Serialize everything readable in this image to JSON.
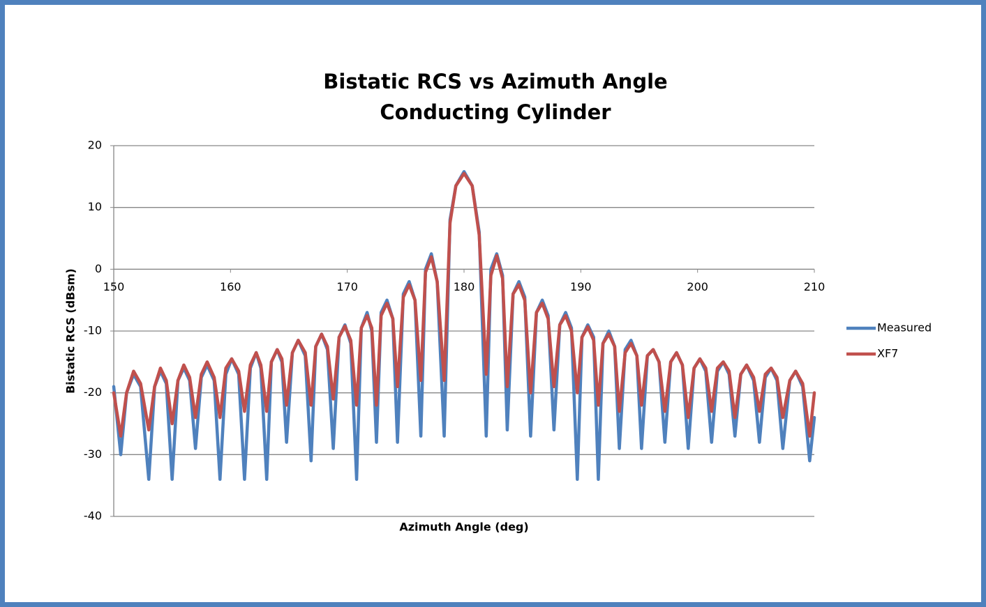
{
  "chart_data": {
    "type": "line",
    "title": "Bistatic RCS vs Azimuth Angle",
    "subtitle": "Conducting Cylinder",
    "x_label": "Azimuth Angle (deg)",
    "y_label": "Bistatic RCS (dBsm)",
    "xlim": [
      150,
      210
    ],
    "xticks": [
      150,
      160,
      170,
      180,
      190,
      200,
      210
    ],
    "ylim": [
      -40,
      20
    ],
    "yticks": [
      -40,
      -30,
      -20,
      -10,
      0,
      10,
      20
    ],
    "grid": true,
    "legend": "right",
    "x": [
      150,
      150.6,
      151.1,
      151.7,
      152.3,
      153.0,
      153.5,
      154.0,
      154.5,
      155.0,
      155.5,
      156.0,
      156.5,
      157.0,
      157.5,
      158.0,
      158.6,
      159.1,
      159.6,
      160.1,
      160.7,
      161.2,
      161.7,
      162.2,
      162.6,
      163.1,
      163.5,
      164.0,
      164.4,
      164.8,
      165.3,
      165.8,
      166.4,
      166.9,
      167.3,
      167.8,
      168.3,
      168.8,
      169.3,
      169.8,
      170.3,
      170.8,
      171.2,
      171.7,
      172.1,
      172.5,
      172.9,
      173.4,
      173.9,
      174.3,
      174.8,
      175.3,
      175.8,
      176.3,
      176.7,
      177.2,
      177.7,
      178.3,
      178.8,
      179.3,
      180.0,
      180.7,
      181.3,
      181.9,
      182.3,
      182.8,
      183.3,
      183.7,
      184.2,
      184.7,
      185.2,
      185.7,
      186.2,
      186.7,
      187.2,
      187.7,
      188.2,
      188.7,
      189.2,
      189.7,
      190.1,
      190.6,
      191.1,
      191.5,
      191.9,
      192.4,
      192.9,
      193.3,
      193.8,
      194.3,
      194.8,
      195.2,
      195.7,
      196.2,
      196.7,
      197.2,
      197.7,
      198.2,
      198.7,
      199.2,
      199.7,
      200.2,
      200.7,
      201.2,
      201.7,
      202.2,
      202.7,
      203.2,
      203.7,
      204.2,
      204.8,
      205.3,
      205.8,
      206.3,
      206.8,
      207.3,
      207.9,
      208.4,
      209.0,
      209.6,
      210
    ],
    "series": [
      {
        "name": "Measured",
        "color": "#4f81bd",
        "values": [
          -19,
          -30,
          -20,
          -17,
          -19,
          -34,
          -19,
          -16.5,
          -18.5,
          -34,
          -18,
          -16,
          -18,
          -29,
          -17.5,
          -15.5,
          -18,
          -34,
          -17,
          -14.5,
          -17,
          -34,
          -16,
          -13.5,
          -16,
          -34,
          -15,
          -13,
          -15,
          -28,
          -13.5,
          -11.5,
          -14,
          -31,
          -12.5,
          -10.5,
          -13,
          -29,
          -11,
          -9,
          -12,
          -34,
          -9.5,
          -7,
          -10,
          -28,
          -7,
          -5,
          -8,
          -28,
          -4,
          -2,
          -5,
          -27,
          0,
          2.5,
          -2,
          -27,
          8,
          13.5,
          15.8,
          13.5,
          6,
          -27,
          0,
          2.5,
          -1,
          -26,
          -4,
          -2,
          -4.5,
          -27,
          -7,
          -5,
          -7.5,
          -26,
          -9,
          -7,
          -9.5,
          -34,
          -11,
          -9,
          -11,
          -34,
          -12,
          -10,
          -12.5,
          -29,
          -13,
          -11.5,
          -14,
          -29,
          -14,
          -13,
          -15,
          -28,
          -15,
          -13.5,
          -15.5,
          -29,
          -16,
          -14.5,
          -16.5,
          -28,
          -16.5,
          -15,
          -17,
          -27,
          -17,
          -15.5,
          -18,
          -28,
          -17.5,
          -16,
          -18,
          -29,
          -18,
          -16.5,
          -19,
          -31,
          -24
        ]
      },
      {
        "name": "XF7",
        "color": "#c0504d",
        "values": [
          -20,
          -27,
          -20,
          -16.5,
          -18.5,
          -26,
          -19,
          -16,
          -18,
          -25,
          -18,
          -15.5,
          -17.5,
          -24,
          -17,
          -15,
          -17.5,
          -24,
          -16,
          -14.5,
          -16.5,
          -23,
          -15.5,
          -13.5,
          -15.5,
          -23,
          -15,
          -13,
          -14.5,
          -22,
          -13.5,
          -11.5,
          -13.5,
          -22,
          -12.5,
          -10.5,
          -12.5,
          -21,
          -11,
          -9.2,
          -11.5,
          -22,
          -9.5,
          -7.5,
          -9.5,
          -22,
          -7.5,
          -5.5,
          -8,
          -19,
          -4.5,
          -2.5,
          -5,
          -18,
          -0.5,
          2,
          -2,
          -18,
          7.5,
          13.5,
          15.5,
          13.5,
          5.5,
          -17,
          -1,
          2.2,
          -1.5,
          -19,
          -4,
          -2.5,
          -5,
          -20,
          -7,
          -5.5,
          -8,
          -19,
          -9,
          -7.5,
          -10,
          -20,
          -11,
          -9.3,
          -11.5,
          -22,
          -12,
          -10.5,
          -12.5,
          -23,
          -13.5,
          -12,
          -14,
          -22,
          -14,
          -13,
          -15,
          -23,
          -15,
          -13.5,
          -15.5,
          -24,
          -16,
          -14.5,
          -16,
          -23,
          -16,
          -15,
          -16.5,
          -24,
          -17,
          -15.5,
          -17.5,
          -23,
          -17,
          -16,
          -17.5,
          -24,
          -18,
          -16.5,
          -18.5,
          -27,
          -20
        ]
      }
    ]
  }
}
